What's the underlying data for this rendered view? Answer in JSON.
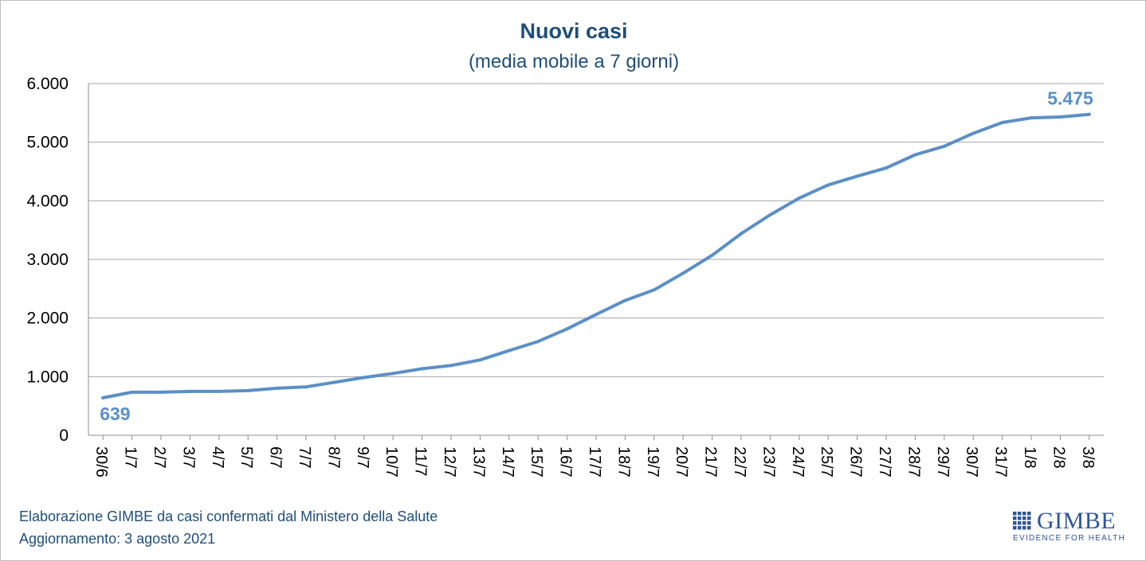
{
  "chart_data": {
    "type": "line",
    "title": "Nuovi casi",
    "subtitle": "(media mobile a 7 giorni)",
    "categories": [
      "30/6",
      "1/7",
      "2/7",
      "3/7",
      "4/7",
      "5/7",
      "6/7",
      "7/7",
      "8/7",
      "9/7",
      "10/7",
      "11/7",
      "12/7",
      "13/7",
      "14/7",
      "15/7",
      "16/7",
      "17/7",
      "18/7",
      "19/7",
      "20/7",
      "21/7",
      "22/7",
      "23/7",
      "24/7",
      "25/7",
      "26/7",
      "27/7",
      "28/7",
      "29/7",
      "30/7",
      "31/7",
      "1/8",
      "2/8",
      "3/8"
    ],
    "series": [
      {
        "name": "Nuovi casi (media mobile a 7 giorni)",
        "values": [
          639,
          735,
          735,
          748,
          748,
          762,
          802,
          825,
          905,
          985,
          1055,
          1135,
          1190,
          1285,
          1445,
          1600,
          1815,
          2060,
          2300,
          2480,
          2765,
          3070,
          3440,
          3760,
          4045,
          4270,
          4420,
          4560,
          4785,
          4930,
          5150,
          5335,
          5415,
          5430,
          5475
        ]
      }
    ],
    "yticks": [
      0,
      1000,
      2000,
      3000,
      4000,
      5000,
      6000
    ],
    "ytick_labels": [
      "0",
      "1.000",
      "2.000",
      "3.000",
      "4.000",
      "5.000",
      "6.000"
    ],
    "ylim": [
      0,
      6000
    ],
    "grid": true,
    "annotations": [
      {
        "text": "639",
        "category": "30/6",
        "value": 639
      },
      {
        "text": "5.475",
        "category": "3/8",
        "value": 5475
      }
    ],
    "xlabel": "",
    "ylabel": ""
  },
  "footer": {
    "source": "Elaborazione GIMBE da casi confermati dal Ministero della Salute",
    "updated": "Aggiornamento: 3 agosto 2021"
  },
  "logo": {
    "name": "GIMBE",
    "tagline": "EVIDENCE FOR HEALTH"
  },
  "colors": {
    "line": "#5b8fc7",
    "title": "#1f4e79",
    "subtitle": "#1f4e79",
    "callout": "#5b8fc7",
    "footer": "#1f4e79",
    "logo": "#2f5597",
    "grid": "#a6a6a6"
  }
}
